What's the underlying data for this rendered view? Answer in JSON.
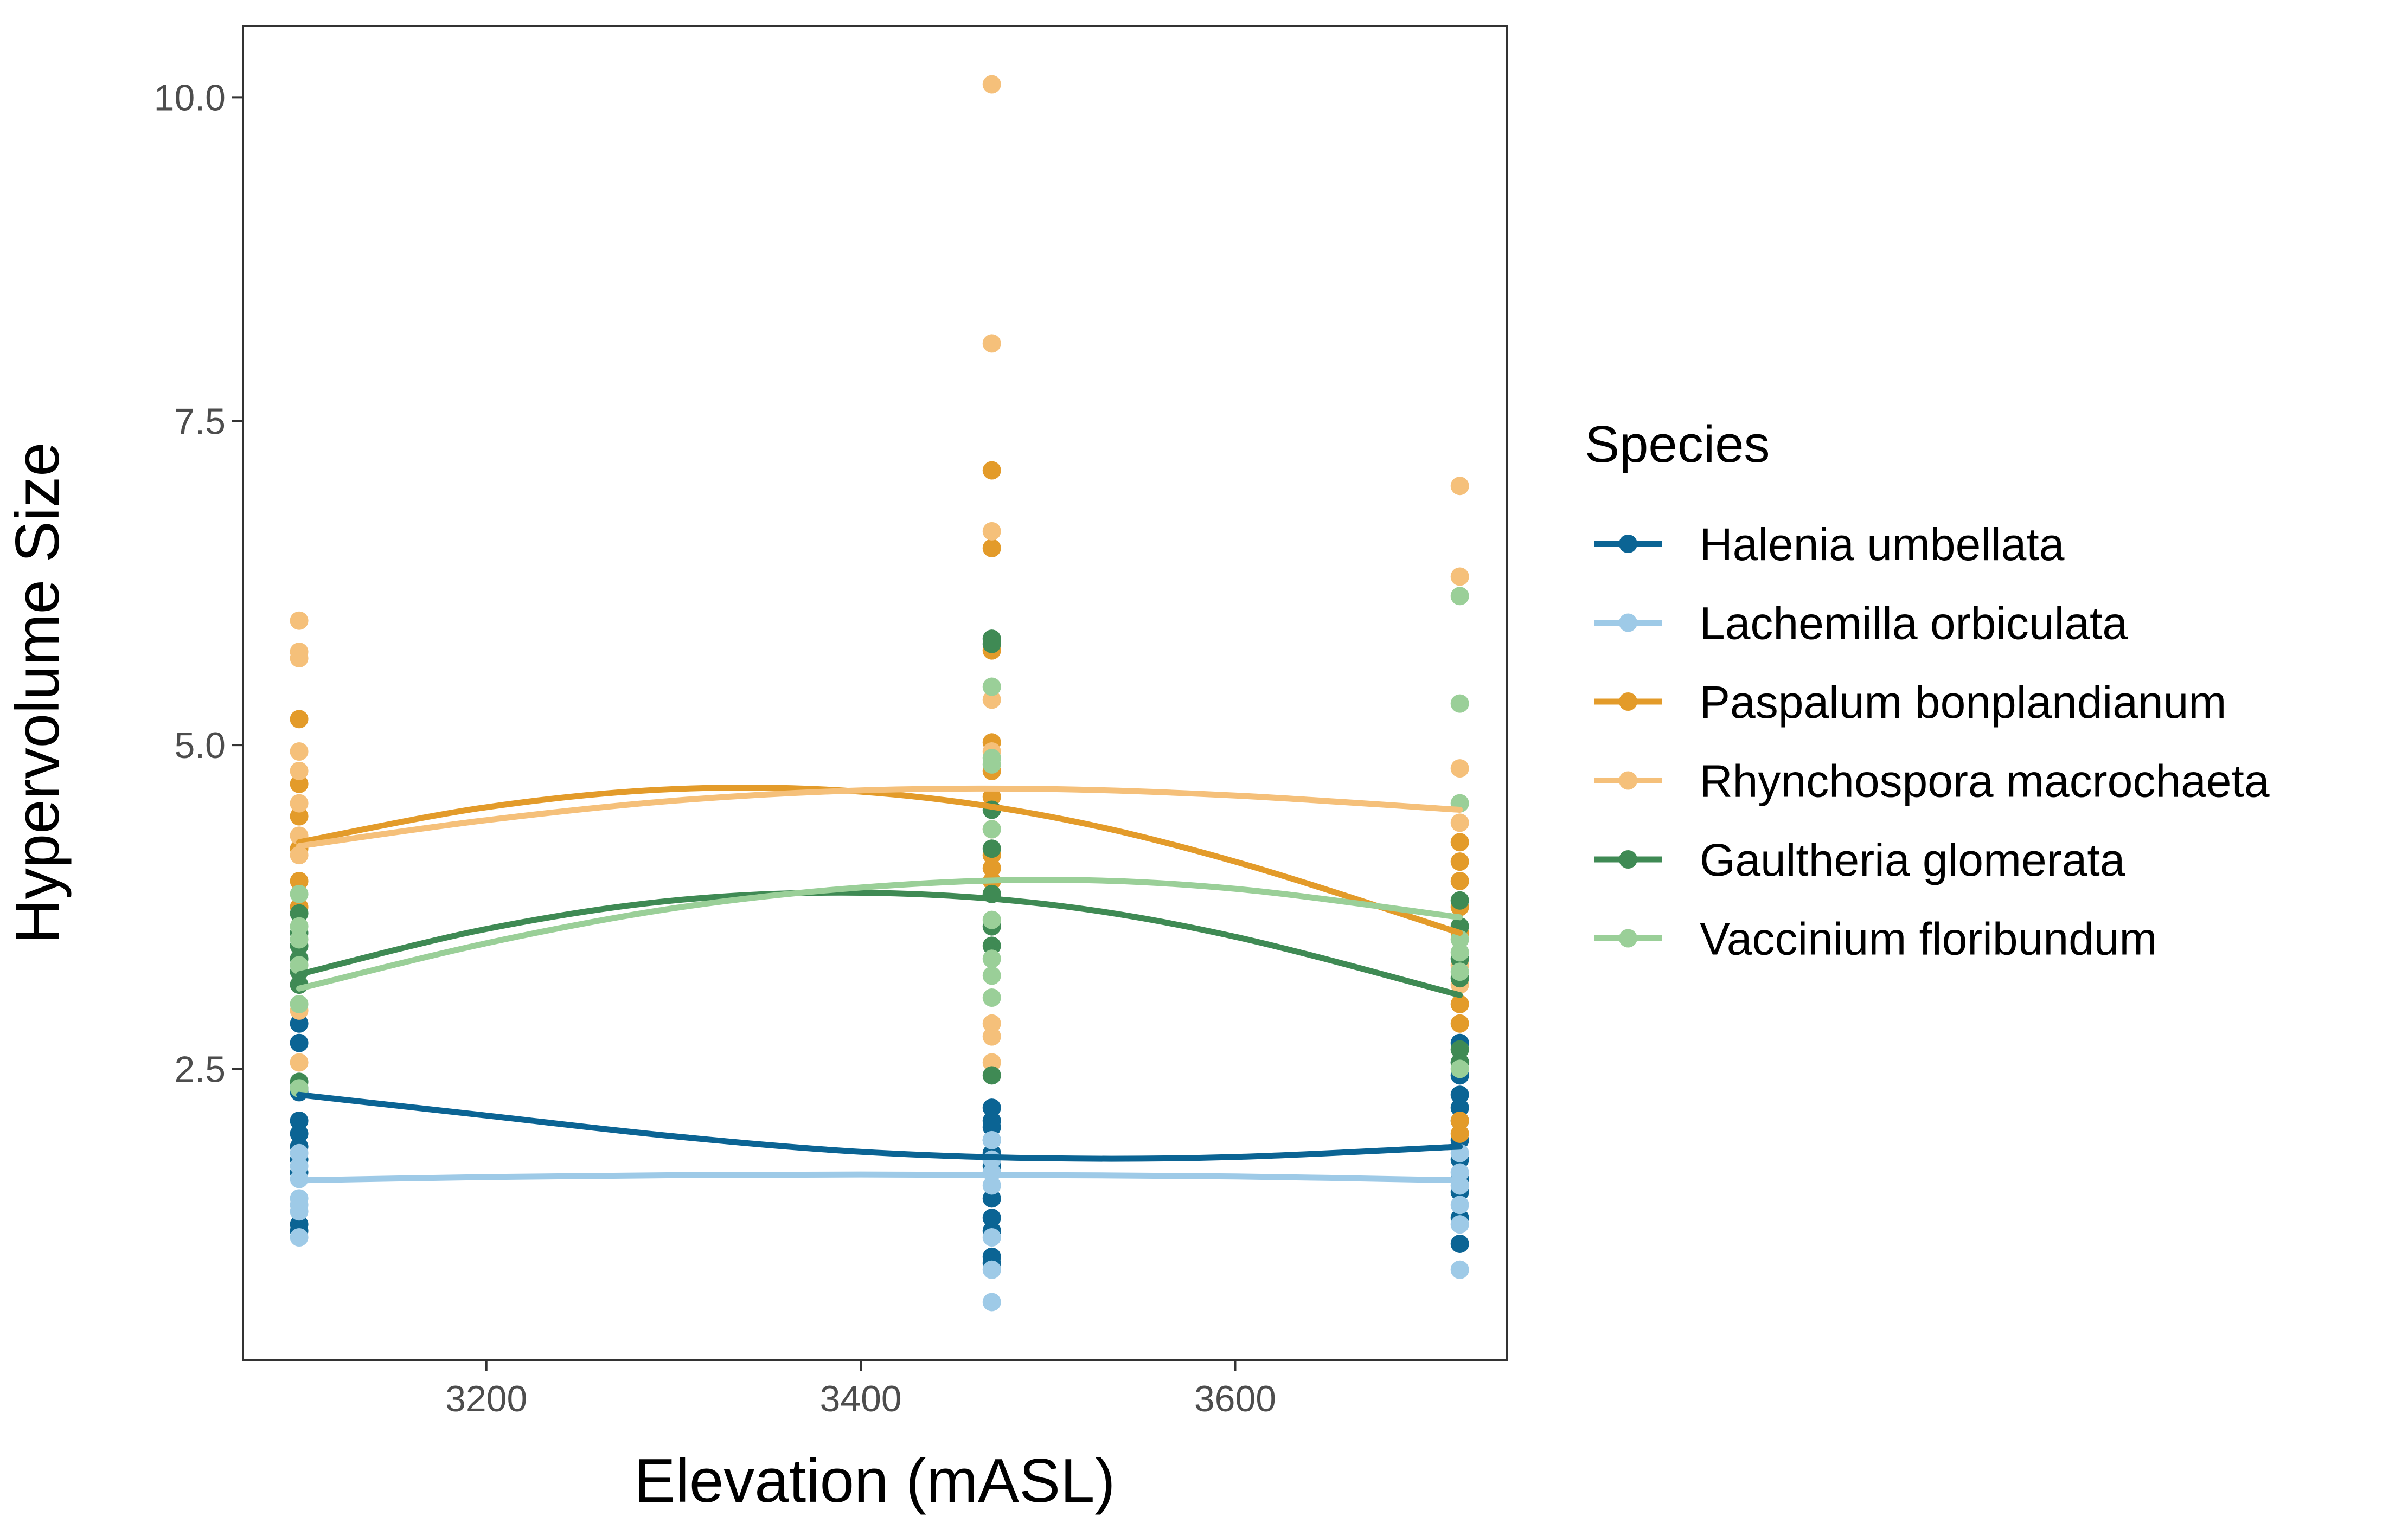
{
  "chart_data": {
    "type": "scatter",
    "xlabel": "Elevation (mASL)",
    "ylabel": "Hypervolume Size",
    "xlim": [
      3070,
      3745
    ],
    "ylim": [
      0.25,
      10.55
    ],
    "xticks": [
      3200,
      3400,
      3600
    ],
    "yticks": [
      2.5,
      5.0,
      7.5,
      10.0
    ],
    "xtick_labels": [
      "3200",
      "3400",
      "3600"
    ],
    "ytick_labels": [
      "2.5",
      "5.0",
      "7.5",
      "10.0"
    ],
    "grid": false,
    "legend": {
      "title": "Species",
      "position": "right"
    },
    "series": [
      {
        "name": "Halenia umbellata",
        "color": "#0b6494",
        "points": [
          [
            3100,
            2.32
          ],
          [
            3100,
            2.1
          ],
          [
            3100,
            2.0
          ],
          [
            3100,
            1.9
          ],
          [
            3100,
            1.8
          ],
          [
            3100,
            1.7
          ],
          [
            3100,
            2.7
          ],
          [
            3100,
            2.85
          ],
          [
            3100,
            2.35
          ],
          [
            3100,
            1.3
          ],
          [
            3100,
            1.25
          ],
          [
            3470,
            2.2
          ],
          [
            3470,
            2.1
          ],
          [
            3470,
            2.05
          ],
          [
            3470,
            1.95
          ],
          [
            3470,
            1.85
          ],
          [
            3470,
            1.8
          ],
          [
            3470,
            1.75
          ],
          [
            3470,
            1.5
          ],
          [
            3470,
            1.35
          ],
          [
            3470,
            1.25
          ],
          [
            3470,
            1.05
          ],
          [
            3470,
            1.0
          ],
          [
            3720,
            2.7
          ],
          [
            3720,
            2.55
          ],
          [
            3720,
            2.45
          ],
          [
            3720,
            2.3
          ],
          [
            3720,
            2.2
          ],
          [
            3720,
            2.1
          ],
          [
            3720,
            1.95
          ],
          [
            3720,
            1.8
          ],
          [
            3720,
            1.65
          ],
          [
            3720,
            1.55
          ],
          [
            3720,
            1.35
          ],
          [
            3720,
            1.15
          ]
        ],
        "trend": [
          [
            3100,
            2.3
          ],
          [
            3200,
            2.14
          ],
          [
            3300,
            1.98
          ],
          [
            3400,
            1.86
          ],
          [
            3500,
            1.81
          ],
          [
            3600,
            1.82
          ],
          [
            3720,
            1.9
          ]
        ]
      },
      {
        "name": "Lachemilla orbiculata",
        "color": "#9ecae7",
        "points": [
          [
            3100,
            1.85
          ],
          [
            3100,
            1.75
          ],
          [
            3100,
            1.65
          ],
          [
            3100,
            1.5
          ],
          [
            3100,
            1.45
          ],
          [
            3100,
            1.4
          ],
          [
            3100,
            1.2
          ],
          [
            3470,
            1.95
          ],
          [
            3470,
            1.8
          ],
          [
            3470,
            1.7
          ],
          [
            3470,
            1.6
          ],
          [
            3470,
            1.2
          ],
          [
            3470,
            0.95
          ],
          [
            3470,
            0.7
          ],
          [
            3720,
            1.85
          ],
          [
            3720,
            1.7
          ],
          [
            3720,
            1.6
          ],
          [
            3720,
            1.45
          ],
          [
            3720,
            1.3
          ],
          [
            3720,
            0.95
          ]
        ],
        "trend": [
          [
            3100,
            1.64
          ],
          [
            3200,
            1.665
          ],
          [
            3300,
            1.68
          ],
          [
            3400,
            1.685
          ],
          [
            3500,
            1.68
          ],
          [
            3600,
            1.67
          ],
          [
            3720,
            1.64
          ]
        ]
      },
      {
        "name": "Paspalum bonplandianum",
        "color": "#e39b2a",
        "points": [
          [
            3100,
            5.2
          ],
          [
            3100,
            4.7
          ],
          [
            3100,
            4.45
          ],
          [
            3100,
            4.2
          ],
          [
            3100,
            3.95
          ],
          [
            3100,
            3.75
          ],
          [
            3470,
            7.12
          ],
          [
            3470,
            6.52
          ],
          [
            3470,
            5.73
          ],
          [
            3470,
            5.02
          ],
          [
            3470,
            4.8
          ],
          [
            3470,
            4.6
          ],
          [
            3470,
            4.15
          ],
          [
            3470,
            4.05
          ],
          [
            3470,
            3.95
          ],
          [
            3720,
            4.25
          ],
          [
            3720,
            4.1
          ],
          [
            3720,
            3.95
          ],
          [
            3720,
            3.75
          ],
          [
            3720,
            3.55
          ],
          [
            3720,
            3.0
          ],
          [
            3720,
            2.85
          ],
          [
            3720,
            2.1
          ],
          [
            3720,
            2.0
          ]
        ],
        "trend": [
          [
            3100,
            4.25
          ],
          [
            3200,
            4.52
          ],
          [
            3300,
            4.66
          ],
          [
            3400,
            4.64
          ],
          [
            3500,
            4.45
          ],
          [
            3600,
            4.1
          ],
          [
            3720,
            3.55
          ]
        ]
      },
      {
        "name": "Rhynchospora macrochaeta",
        "color": "#f5c07a",
        "points": [
          [
            3100,
            5.96
          ],
          [
            3100,
            5.72
          ],
          [
            3100,
            5.67
          ],
          [
            3100,
            4.95
          ],
          [
            3100,
            4.8
          ],
          [
            3100,
            4.55
          ],
          [
            3100,
            4.3
          ],
          [
            3100,
            4.15
          ],
          [
            3100,
            2.95
          ],
          [
            3100,
            2.55
          ],
          [
            3470,
            10.1
          ],
          [
            3470,
            8.1
          ],
          [
            3470,
            6.65
          ],
          [
            3470,
            5.35
          ],
          [
            3470,
            4.95
          ],
          [
            3470,
            4.35
          ],
          [
            3470,
            2.85
          ],
          [
            3470,
            2.75
          ],
          [
            3470,
            2.55
          ],
          [
            3720,
            7.0
          ],
          [
            3720,
            6.3
          ],
          [
            3720,
            4.82
          ],
          [
            3720,
            4.4
          ],
          [
            3720,
            3.3
          ],
          [
            3720,
            3.15
          ]
        ],
        "trend": [
          [
            3100,
            4.22
          ],
          [
            3200,
            4.42
          ],
          [
            3300,
            4.57
          ],
          [
            3400,
            4.65
          ],
          [
            3500,
            4.66
          ],
          [
            3600,
            4.61
          ],
          [
            3720,
            4.5
          ]
        ]
      },
      {
        "name": "Gaultheria glomerata",
        "color": "#3f8a54",
        "points": [
          [
            3100,
            3.7
          ],
          [
            3100,
            3.55
          ],
          [
            3100,
            3.45
          ],
          [
            3100,
            3.35
          ],
          [
            3100,
            3.25
          ],
          [
            3100,
            3.15
          ],
          [
            3100,
            2.4
          ],
          [
            3470,
            5.82
          ],
          [
            3470,
            5.78
          ],
          [
            3470,
            4.5
          ],
          [
            3470,
            4.2
          ],
          [
            3470,
            3.85
          ],
          [
            3470,
            3.6
          ],
          [
            3470,
            3.45
          ],
          [
            3470,
            2.45
          ],
          [
            3720,
            3.8
          ],
          [
            3720,
            3.6
          ],
          [
            3720,
            3.35
          ],
          [
            3720,
            3.2
          ],
          [
            3720,
            2.65
          ],
          [
            3720,
            2.55
          ]
        ],
        "trend": [
          [
            3100,
            3.23
          ],
          [
            3200,
            3.58
          ],
          [
            3300,
            3.8
          ],
          [
            3400,
            3.86
          ],
          [
            3500,
            3.77
          ],
          [
            3600,
            3.52
          ],
          [
            3720,
            3.07
          ]
        ]
      },
      {
        "name": "Vaccinium floribundum",
        "color": "#9acf98",
        "points": [
          [
            3100,
            3.85
          ],
          [
            3100,
            3.6
          ],
          [
            3100,
            3.5
          ],
          [
            3100,
            3.3
          ],
          [
            3100,
            3.0
          ],
          [
            3100,
            2.35
          ],
          [
            3470,
            5.45
          ],
          [
            3470,
            4.9
          ],
          [
            3470,
            4.85
          ],
          [
            3470,
            4.35
          ],
          [
            3470,
            3.65
          ],
          [
            3470,
            3.35
          ],
          [
            3470,
            3.22
          ],
          [
            3470,
            3.05
          ],
          [
            3720,
            6.15
          ],
          [
            3720,
            5.32
          ],
          [
            3720,
            4.55
          ],
          [
            3720,
            3.5
          ],
          [
            3720,
            3.4
          ],
          [
            3720,
            3.25
          ],
          [
            3720,
            2.5
          ]
        ],
        "trend": [
          [
            3100,
            3.12
          ],
          [
            3200,
            3.47
          ],
          [
            3300,
            3.74
          ],
          [
            3400,
            3.9
          ],
          [
            3500,
            3.96
          ],
          [
            3600,
            3.89
          ],
          [
            3720,
            3.67
          ]
        ]
      }
    ]
  }
}
